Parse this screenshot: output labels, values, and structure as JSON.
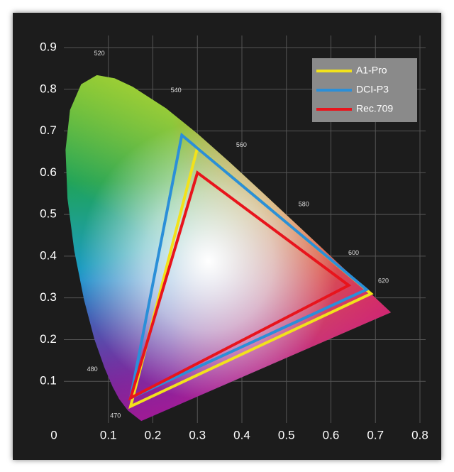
{
  "chart_data": {
    "type": "gamut",
    "xlim": [
      0,
      0.8
    ],
    "ylim": [
      0,
      0.9
    ],
    "xticks": [
      0,
      0.1,
      0.2,
      0.3,
      0.4,
      0.5,
      0.6,
      0.7,
      0.8
    ],
    "yticks": [
      0.1,
      0.2,
      0.3,
      0.4,
      0.5,
      0.6,
      0.7,
      0.8,
      0.9
    ],
    "grid": true,
    "legend": "top-right",
    "locus": {
      "x": [
        0.1741,
        0.144,
        0.1241,
        0.1096,
        0.0913,
        0.0687,
        0.0454,
        0.0235,
        0.0082,
        0.0039,
        0.0139,
        0.0389,
        0.0743,
        0.1142,
        0.1547,
        0.2296,
        0.3016,
        0.3731,
        0.4441,
        0.5125,
        0.5752,
        0.627,
        0.6915,
        0.7347
      ],
      "y": [
        0.005,
        0.0297,
        0.0578,
        0.0868,
        0.1327,
        0.2007,
        0.295,
        0.4127,
        0.5384,
        0.6548,
        0.7502,
        0.812,
        0.8338,
        0.8262,
        0.8059,
        0.7543,
        0.6923,
        0.6245,
        0.5547,
        0.4866,
        0.4242,
        0.3725,
        0.3083,
        0.2653
      ]
    },
    "wavelength_labels": [
      {
        "text": "520",
        "x": 0.08,
        "y": 0.885
      },
      {
        "text": "540",
        "x": 0.252,
        "y": 0.797
      },
      {
        "text": "560",
        "x": 0.399,
        "y": 0.666
      },
      {
        "text": "580",
        "x": 0.539,
        "y": 0.524
      },
      {
        "text": "600",
        "x": 0.651,
        "y": 0.407
      },
      {
        "text": "620",
        "x": 0.718,
        "y": 0.34
      },
      {
        "text": "480",
        "x": 0.064,
        "y": 0.128
      },
      {
        "text": "470",
        "x": 0.116,
        "y": 0.017
      }
    ],
    "series": [
      {
        "name": "A1-Pro",
        "color": "#f2e21b",
        "x": [
          0.3,
          0.69,
          0.15
        ],
        "values": [
          0.66,
          0.31,
          0.04
        ]
      },
      {
        "name": "DCI-P3",
        "color": "#2b8fd8",
        "x": [
          0.265,
          0.68,
          0.15
        ],
        "values": [
          0.69,
          0.32,
          0.06
        ]
      },
      {
        "name": "Rec.709",
        "color": "#e8141c",
        "x": [
          0.3,
          0.64,
          0.15
        ],
        "values": [
          0.6,
          0.33,
          0.06
        ]
      }
    ]
  }
}
